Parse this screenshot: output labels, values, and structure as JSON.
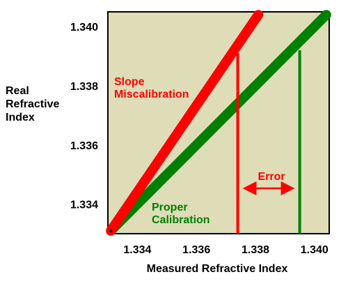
{
  "chart_data": {
    "type": "line",
    "title": "",
    "xlabel": "Measured Refractive Index",
    "ylabel": [
      "Real",
      "Refractive",
      "Index"
    ],
    "xlim": [
      1.333,
      1.3405
    ],
    "ylim": [
      1.333,
      1.3405
    ],
    "x_ticks": [
      "1.334",
      "1.336",
      "1.338",
      "1.340"
    ],
    "y_ticks": [
      "1.334",
      "1.336",
      "1.338",
      "1.340"
    ],
    "grid": false,
    "series": [
      {
        "name": [
          "Slope",
          "Miscalibration"
        ],
        "color": "#ff0000",
        "x": [
          1.3331,
          1.3381
        ],
        "y": [
          1.3331,
          1.3404
        ]
      },
      {
        "name": [
          "Proper",
          "Calibration"
        ],
        "color": "#008000",
        "x": [
          1.3331,
          1.3404
        ],
        "y": [
          1.3331,
          1.3404
        ]
      }
    ],
    "reference_lines": [
      {
        "series": "red",
        "x": 1.3374,
        "y_from": 1.333,
        "y_to": 1.3391,
        "color": "#ff0000"
      },
      {
        "series": "green",
        "x": 1.3395,
        "y_from": 1.333,
        "y_to": 1.3392,
        "color": "#008000"
      }
    ],
    "annotation": {
      "text": "Error",
      "color": "#ff0000",
      "arrow_from": 1.3374,
      "arrow_to": 1.3395,
      "y": 1.3345
    },
    "plot_background": "#deddb8"
  }
}
